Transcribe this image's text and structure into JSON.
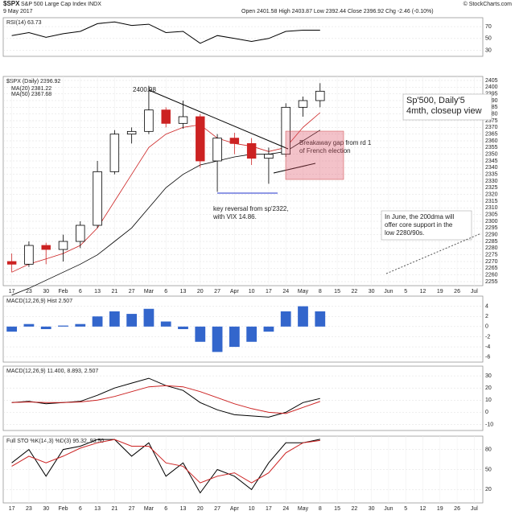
{
  "header": {
    "symbol": "$SPX",
    "name": "S&P 500 Large Cap Index INDX",
    "date": "9 May 2017",
    "quote": "Open 2401.58 High 2403.87 Low 2392.44 Close 2396.92 Chg -2.46 (-0.10%)",
    "source": "© StockCharts.com"
  },
  "chart_data": [
    {
      "type": "line",
      "title": "RSI(14) 63.73",
      "ylim": [
        20,
        85
      ],
      "yticks": [
        30,
        50,
        70
      ],
      "series": [
        {
          "name": "RSI(14)",
          "color": "#000000",
          "values": [
            55,
            60,
            52,
            58,
            62,
            75,
            78,
            72,
            74,
            60,
            62,
            42,
            55,
            50,
            45,
            50,
            62,
            64,
            64,
            null,
            null,
            null,
            null,
            null,
            null,
            null,
            null,
            null
          ]
        }
      ]
    },
    {
      "type": "candlestick",
      "title": "$SPX (Daily) 2396.92",
      "ylim": [
        2252,
        2408
      ],
      "yticks": [
        2255,
        2260,
        2265,
        2270,
        2275,
        2280,
        2285,
        2290,
        2295,
        2300,
        2305,
        2310,
        2315,
        2320,
        2325,
        2330,
        2335,
        2340,
        2345,
        2350,
        2355,
        2360,
        2365,
        2370,
        2375,
        2380,
        2385,
        2390,
        2395,
        2400,
        2405
      ],
      "categories": [
        "17",
        "23",
        "30",
        "Feb",
        "6",
        "13",
        "21",
        "27",
        "Mar",
        "6",
        "13",
        "20",
        "27",
        "Apr",
        "10",
        "17",
        "24",
        "May",
        "8",
        "15",
        "22",
        "30",
        "Jun",
        "5",
        "12",
        "19",
        "26",
        "Jul"
      ],
      "open": [
        2270,
        2268,
        2282,
        2279,
        2285,
        2297,
        2337,
        2365,
        2367,
        2383,
        2373,
        2378,
        2345,
        2362,
        2358,
        2347,
        2350,
        2385,
        2390,
        null,
        null,
        null,
        null,
        null,
        null,
        null,
        null,
        null
      ],
      "high": [
        2276,
        2285,
        2284,
        2290,
        2300,
        2345,
        2368,
        2370,
        2401,
        2385,
        2390,
        2380,
        2365,
        2366,
        2362,
        2355,
        2388,
        2393,
        2403,
        null,
        null,
        null,
        null,
        null,
        null,
        null,
        null,
        null
      ],
      "low": [
        2262,
        2266,
        2268,
        2270,
        2280,
        2295,
        2335,
        2358,
        2365,
        2370,
        2369,
        2340,
        2322,
        2350,
        2342,
        2328,
        2348,
        2378,
        2385,
        null,
        null,
        null,
        null,
        null,
        null,
        null,
        null,
        null
      ],
      "close": [
        2268,
        2282,
        2279,
        2285,
        2297,
        2337,
        2365,
        2367,
        2383,
        2373,
        2378,
        2345,
        2362,
        2358,
        2347,
        2350,
        2385,
        2390,
        2397,
        null,
        null,
        null,
        null,
        null,
        null,
        null,
        null,
        null
      ],
      "series": [
        {
          "name": "MA(20) 2381.22",
          "color": "#cc2222",
          "values": [
            2262,
            2268,
            2272,
            2276,
            2282,
            2295,
            2315,
            2335,
            2355,
            2365,
            2370,
            2372,
            2362,
            2358,
            2356,
            2352,
            2355,
            2370,
            2381,
            null,
            null,
            null,
            null,
            null,
            null,
            null,
            null,
            null
          ]
        },
        {
          "name": "MA(50) 2367.68",
          "color": "#000000",
          "values": [
            2245,
            2250,
            2256,
            2262,
            2268,
            2275,
            2285,
            2295,
            2310,
            2325,
            2335,
            2342,
            2345,
            2348,
            2350,
            2350,
            2352,
            2360,
            2368,
            null,
            null,
            null,
            null,
            null,
            null,
            null,
            null,
            null
          ]
        }
      ],
      "annotations": [
        {
          "lines": [
            "2400.98"
          ]
        },
        {
          "lines": [
            "Sp'500, Daily'5",
            "4mth, closeup view"
          ]
        },
        {
          "lines": [
            "Breakaway gap from rd 1",
            "of French election"
          ]
        },
        {
          "lines": [
            "key reversal from sp'2322,",
            "with VIX 14.86."
          ]
        },
        {
          "lines": [
            "In June, the 200dma will",
            "offer core support in the",
            "low 2280/90s."
          ]
        }
      ]
    },
    {
      "type": "bar",
      "title": "MACD(12,26,9) Hist 2.507",
      "ylim": [
        -7,
        6
      ],
      "yticks": [
        -6,
        -4,
        -2,
        0,
        2,
        4
      ],
      "color": "#3366cc",
      "values": [
        -1,
        0.5,
        -0.5,
        0.2,
        0.5,
        2,
        3,
        2.5,
        3.5,
        1,
        -0.5,
        -3,
        -5,
        -4,
        -3,
        -1,
        3,
        4,
        3,
        null,
        null,
        null,
        null,
        null,
        null,
        null,
        null,
        null
      ]
    },
    {
      "type": "line",
      "title": "MACD(12,26,9) 11.400, 8.893, 2.507",
      "ylim": [
        -15,
        38
      ],
      "yticks": [
        -10,
        0,
        10,
        20,
        30
      ],
      "series": [
        {
          "name": "MACD",
          "color": "#000000",
          "values": [
            8,
            9,
            7,
            8,
            9,
            14,
            20,
            24,
            28,
            22,
            18,
            8,
            2,
            -2,
            -3,
            -4,
            0,
            8,
            11.4,
            null,
            null,
            null,
            null,
            null,
            null,
            null,
            null,
            null
          ]
        },
        {
          "name": "Signal",
          "color": "#cc2222",
          "values": [
            8,
            8.5,
            8,
            8,
            8.5,
            10,
            13,
            17,
            21,
            22,
            21,
            17,
            12,
            7,
            3,
            0,
            -1,
            4,
            8.893,
            null,
            null,
            null,
            null,
            null,
            null,
            null,
            null,
            null
          ]
        }
      ]
    },
    {
      "type": "line",
      "title": "Full STO %K(14,3) %D(3) 95.32, 93.50",
      "ylim": [
        0,
        100
      ],
      "yticks": [
        20,
        50,
        80
      ],
      "categories": [
        "17",
        "23",
        "30",
        "Feb",
        "6",
        "13",
        "21",
        "27",
        "Mar",
        "6",
        "13",
        "20",
        "27",
        "Apr",
        "10",
        "17",
        "24",
        "May",
        "8",
        "15",
        "22",
        "30",
        "Jun",
        "5",
        "12",
        "19",
        "26",
        "Jul"
      ],
      "series": [
        {
          "name": "%K",
          "color": "#000000",
          "values": [
            60,
            80,
            40,
            80,
            85,
            95,
            95,
            70,
            90,
            40,
            60,
            15,
            50,
            40,
            20,
            60,
            90,
            90,
            95.32,
            null,
            null,
            null,
            null,
            null,
            null,
            null,
            null,
            null
          ]
        },
        {
          "name": "%D",
          "color": "#cc2222",
          "values": [
            55,
            70,
            60,
            70,
            82,
            90,
            95,
            85,
            85,
            60,
            55,
            30,
            40,
            45,
            30,
            45,
            75,
            90,
            93.5,
            null,
            null,
            null,
            null,
            null,
            null,
            null,
            null,
            null
          ]
        }
      ]
    }
  ]
}
